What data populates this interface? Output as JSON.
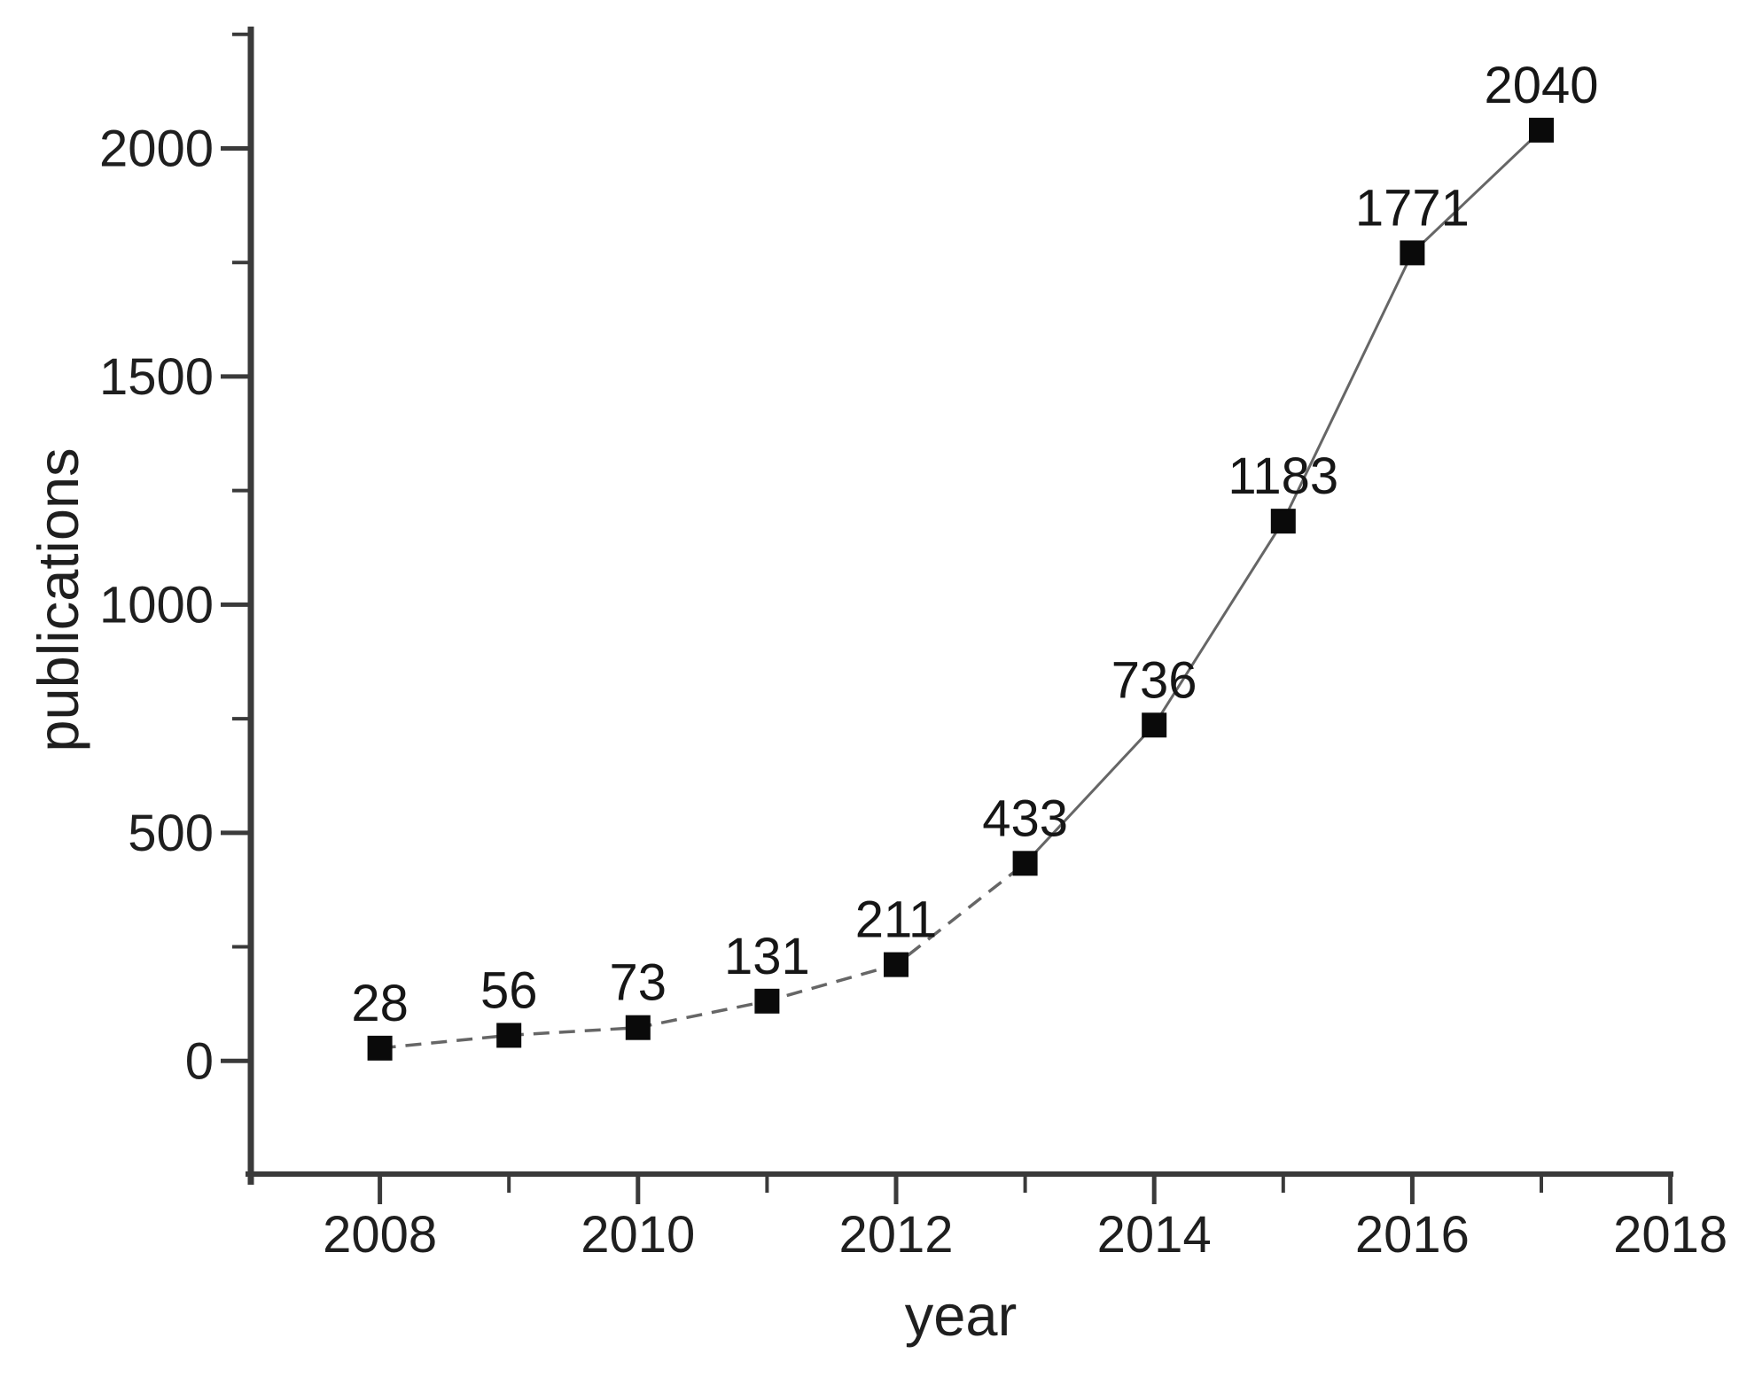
{
  "chart_data": {
    "type": "line",
    "title": "",
    "xlabel": "year",
    "ylabel": "publications",
    "x": [
      2008,
      2009,
      2010,
      2011,
      2012,
      2013,
      2014,
      2015,
      2016,
      2017
    ],
    "values": [
      28,
      56,
      73,
      131,
      211,
      433,
      736,
      1183,
      1771,
      2040
    ],
    "point_labels": [
      "28",
      "56",
      "73",
      "131",
      "211",
      "433",
      "736",
      "1183",
      "1771",
      "2040"
    ],
    "xlim": [
      2007,
      2018
    ],
    "ylim": [
      -250,
      2300
    ],
    "x_major_ticks": [
      2008,
      2010,
      2012,
      2014,
      2016,
      2018
    ],
    "x_minor_ticks": [
      2009,
      2011,
      2013,
      2015,
      2017
    ],
    "y_major_ticks": [
      0,
      500,
      1000,
      1500,
      2000
    ],
    "y_minor_ticks": [
      250,
      750,
      1250,
      1750,
      2250
    ],
    "grid": false,
    "legend_position": "none",
    "marker": "filled-square",
    "line_style_segments": [
      {
        "from_year": 2008,
        "to_year": 2013,
        "style": "dashed"
      },
      {
        "from_year": 2013,
        "to_year": 2017,
        "style": "solid"
      }
    ],
    "colors": {
      "background": "#ffffff",
      "axis": "#3a3a3a",
      "line": "#666666",
      "marker": "#0a0a0a",
      "text": "#1f1f1f"
    }
  }
}
